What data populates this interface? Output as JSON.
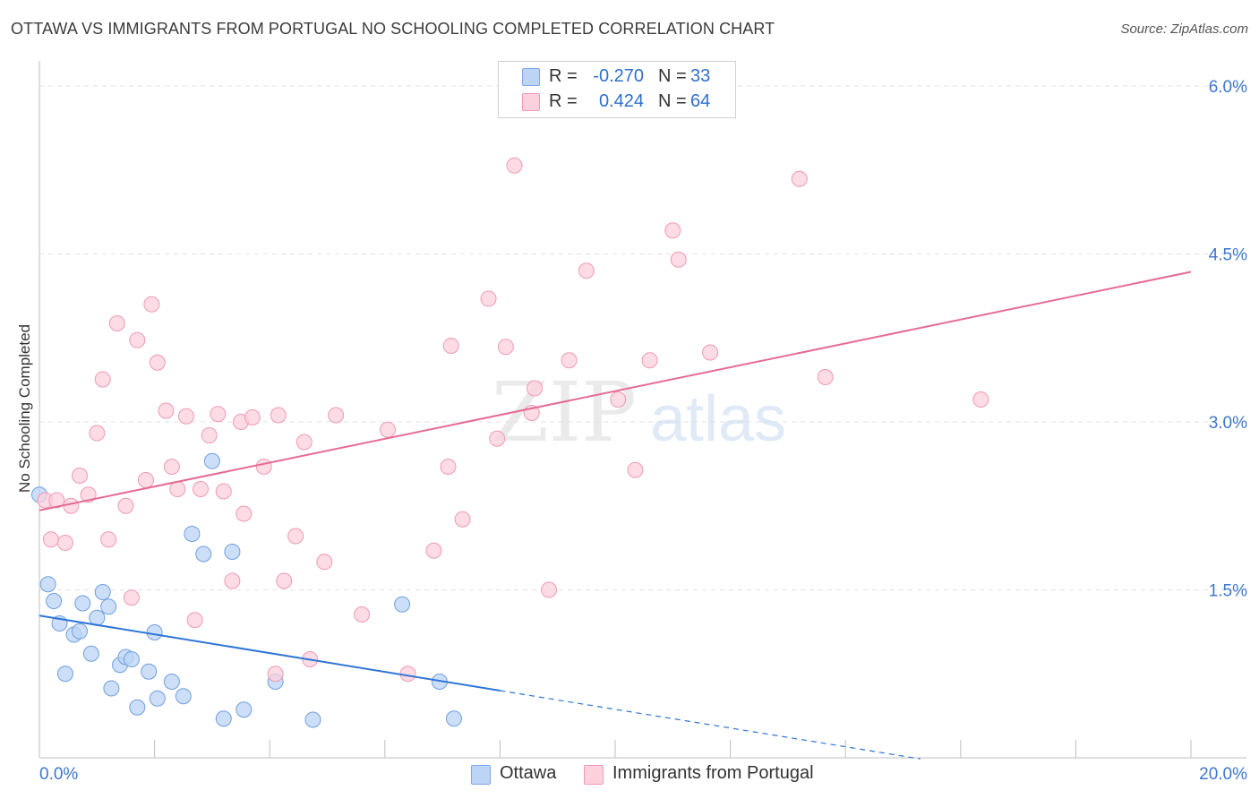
{
  "header": {
    "title": "OTTAWA VS IMMIGRANTS FROM PORTUGAL NO SCHOOLING COMPLETED CORRELATION CHART",
    "source": "Source: ZipAtlas.com"
  },
  "legend": {
    "rows": [
      {
        "r_label": "R =",
        "r_value": "-0.270",
        "n_label": "N =",
        "n_value": "33"
      },
      {
        "r_label": "R =",
        "r_value": "0.424",
        "n_label": "N =",
        "n_value": "64"
      }
    ]
  },
  "bottom_legend": [
    "Ottawa",
    "Immigrants from Portugal"
  ],
  "colors": {
    "ottawa_fill": "#bcd4f6",
    "ottawa_stroke": "#6f9fe0",
    "ottawa_line": "#2f75d6",
    "portugal_fill": "#fcd0dc",
    "portugal_stroke": "#ee9ab3",
    "portugal_line": "#e56b93",
    "axis_label": "#3d77cc",
    "grid": "#e3e3e3"
  },
  "watermark": {
    "part1": "ZIP",
    "part2": "atlas"
  },
  "chart_data": {
    "type": "scatter",
    "title": "OTTAWA VS IMMIGRANTS FROM PORTUGAL NO SCHOOLING COMPLETED CORRELATION CHART",
    "xlabel": "",
    "ylabel": "No Schooling Completed",
    "xlim": [
      0,
      20
    ],
    "ylim": [
      0,
      6.15
    ],
    "x_tick_labels": [
      "0.0%",
      "20.0%"
    ],
    "y_ticks": [
      1.5,
      3.0,
      4.5,
      6.0
    ],
    "y_tick_labels": [
      "1.5%",
      "3.0%",
      "4.5%",
      "6.0%"
    ],
    "series": [
      {
        "name": "Ottawa",
        "r": -0.27,
        "n": 33,
        "points": [
          [
            0.0,
            2.35
          ],
          [
            0.15,
            1.55
          ],
          [
            0.25,
            1.4
          ],
          [
            0.35,
            1.2
          ],
          [
            0.45,
            0.75
          ],
          [
            0.6,
            1.1
          ],
          [
            0.7,
            1.13
          ],
          [
            0.75,
            1.38
          ],
          [
            0.9,
            0.93
          ],
          [
            1.0,
            1.25
          ],
          [
            1.1,
            1.48
          ],
          [
            1.2,
            1.35
          ],
          [
            1.25,
            0.62
          ],
          [
            1.4,
            0.83
          ],
          [
            1.5,
            0.9
          ],
          [
            1.6,
            0.88
          ],
          [
            1.7,
            0.45
          ],
          [
            1.9,
            0.77
          ],
          [
            2.0,
            1.12
          ],
          [
            2.05,
            0.53
          ],
          [
            2.3,
            0.68
          ],
          [
            2.5,
            0.55
          ],
          [
            2.65,
            2.0
          ],
          [
            2.85,
            1.82
          ],
          [
            3.0,
            2.65
          ],
          [
            3.2,
            0.35
          ],
          [
            3.35,
            1.84
          ],
          [
            3.55,
            0.43
          ],
          [
            4.1,
            0.68
          ],
          [
            4.75,
            0.34
          ],
          [
            6.3,
            1.37
          ],
          [
            6.95,
            0.68
          ],
          [
            7.2,
            0.35
          ]
        ],
        "trend": {
          "x0": 0,
          "y0": 1.27,
          "x1": 8.0,
          "y1": 0.6,
          "dashed_to_x": 15.3,
          "dashed_to_y": -0.01
        }
      },
      {
        "name": "Immigrants from Portugal",
        "r": 0.424,
        "n": 64,
        "points": [
          [
            0.1,
            2.3
          ],
          [
            0.2,
            1.95
          ],
          [
            0.3,
            2.3
          ],
          [
            0.45,
            1.92
          ],
          [
            0.55,
            2.25
          ],
          [
            0.7,
            2.52
          ],
          [
            0.85,
            2.35
          ],
          [
            1.0,
            2.9
          ],
          [
            1.1,
            3.38
          ],
          [
            1.2,
            1.95
          ],
          [
            1.35,
            3.88
          ],
          [
            1.5,
            2.25
          ],
          [
            1.6,
            1.43
          ],
          [
            1.7,
            3.73
          ],
          [
            1.85,
            2.48
          ],
          [
            1.95,
            4.05
          ],
          [
            2.05,
            3.53
          ],
          [
            2.2,
            3.1
          ],
          [
            2.3,
            2.6
          ],
          [
            2.4,
            2.4
          ],
          [
            2.55,
            3.05
          ],
          [
            2.7,
            1.23
          ],
          [
            2.8,
            2.4
          ],
          [
            2.95,
            2.88
          ],
          [
            3.1,
            3.07
          ],
          [
            3.2,
            2.38
          ],
          [
            3.35,
            1.58
          ],
          [
            3.5,
            3.0
          ],
          [
            3.55,
            2.18
          ],
          [
            3.7,
            3.04
          ],
          [
            3.9,
            2.6
          ],
          [
            4.1,
            0.75
          ],
          [
            4.15,
            3.06
          ],
          [
            4.25,
            1.58
          ],
          [
            4.45,
            1.98
          ],
          [
            4.6,
            2.82
          ],
          [
            4.7,
            0.88
          ],
          [
            4.95,
            1.75
          ],
          [
            5.15,
            3.06
          ],
          [
            5.6,
            1.28
          ],
          [
            6.05,
            2.93
          ],
          [
            6.4,
            0.75
          ],
          [
            6.85,
            1.85
          ],
          [
            7.1,
            2.6
          ],
          [
            7.15,
            3.68
          ],
          [
            7.35,
            2.13
          ],
          [
            7.8,
            4.1
          ],
          [
            7.95,
            2.85
          ],
          [
            8.1,
            3.67
          ],
          [
            8.25,
            5.29
          ],
          [
            8.55,
            3.08
          ],
          [
            8.6,
            3.3
          ],
          [
            8.85,
            1.5
          ],
          [
            9.2,
            3.55
          ],
          [
            9.5,
            4.35
          ],
          [
            10.05,
            3.2
          ],
          [
            10.35,
            2.57
          ],
          [
            10.6,
            3.55
          ],
          [
            11.0,
            4.71
          ],
          [
            11.1,
            4.45
          ],
          [
            11.65,
            3.62
          ],
          [
            13.2,
            5.17
          ],
          [
            13.65,
            3.4
          ],
          [
            16.35,
            3.2
          ]
        ],
        "trend": {
          "x0": 0,
          "y0": 2.21,
          "x1": 20,
          "y1": 4.34
        }
      }
    ]
  }
}
